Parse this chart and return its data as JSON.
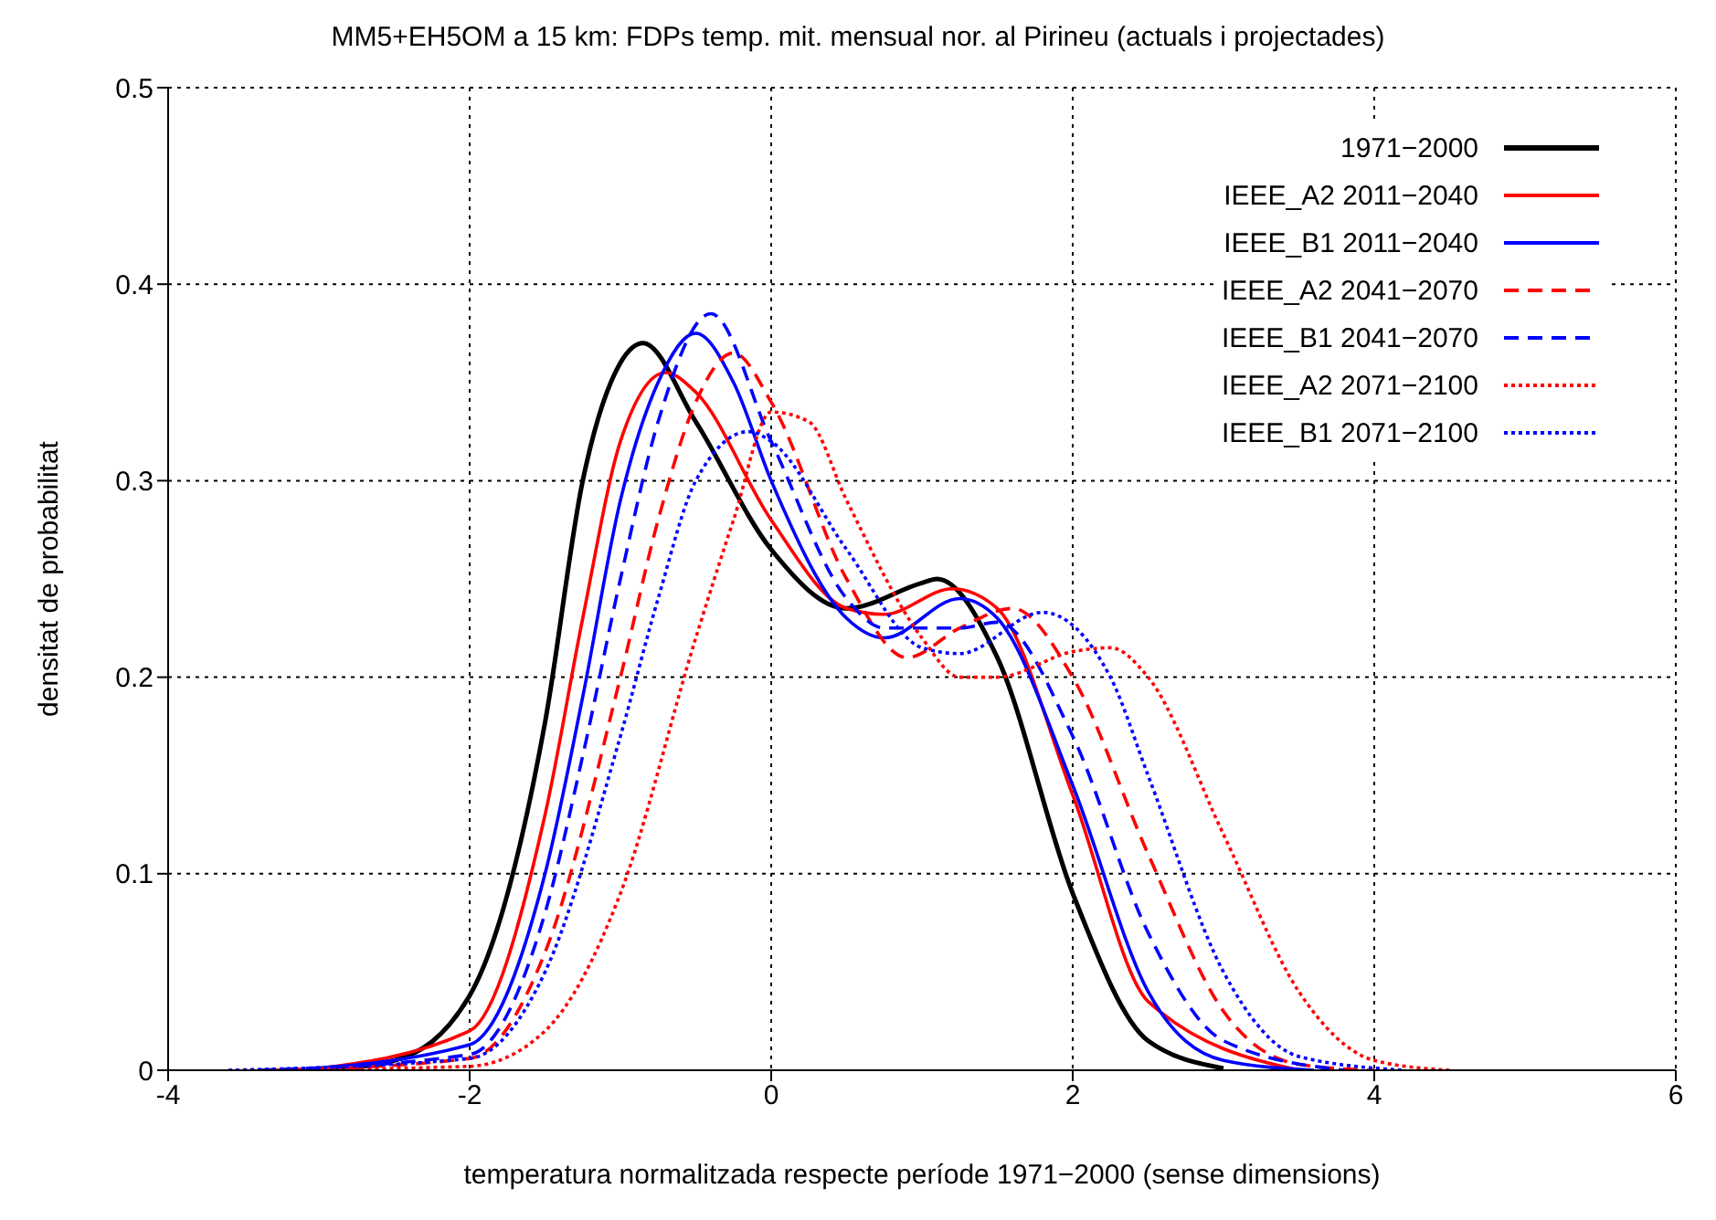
{
  "chart_data": {
    "type": "line",
    "title": "MM5+EH5OM a 15 km: FDPs temp. mit. mensual nor. al Pirineu (actuals i projectades)",
    "xlabel": "temperatura normalitzada respecte període 1971−2000 (sense dimensions)",
    "ylabel": "densitat de probabilitat",
    "xlim": [
      -4,
      6
    ],
    "xticks": [
      -4,
      -2,
      0,
      2,
      4,
      6
    ],
    "ylim": [
      0,
      0.5
    ],
    "yticks": [
      0,
      0.1,
      0.2,
      0.3,
      0.4,
      0.5
    ],
    "grid": true,
    "legend": "top right",
    "marker": "none",
    "series": [
      {
        "name": "1971−2000",
        "color": "#000000",
        "line_style": "solid",
        "x": [
          -3,
          -2.5,
          -2,
          -1.5,
          -1.25,
          -1,
          -0.85,
          -0.5,
          0,
          0.5,
          1,
          1.1,
          1.5,
          2,
          2.5,
          3
        ],
        "values": [
          0,
          0.005,
          0.038,
          0.177,
          0.3,
          0.36,
          0.37,
          0.33,
          0.265,
          0.235,
          0.248,
          0.25,
          0.21,
          0.09,
          0.015,
          0.001
        ]
      },
      {
        "name": "IEEE_A2 2011−2040",
        "color": "#ff0000",
        "line_style": "solid",
        "x": [
          -3.1,
          -2,
          -1.5,
          -1.25,
          -1,
          -0.7,
          -0.5,
          0,
          0.5,
          0.75,
          1.2,
          1.5,
          2,
          2.5,
          3.5
        ],
        "values": [
          0,
          0.02,
          0.13,
          0.23,
          0.32,
          0.355,
          0.345,
          0.28,
          0.235,
          0.232,
          0.245,
          0.235,
          0.14,
          0.035,
          0
        ]
      },
      {
        "name": "IEEE_B1 2011−2040",
        "color": "#0000ff",
        "line_style": "solid",
        "x": [
          -3.2,
          -2,
          -1.5,
          -1.25,
          -1,
          -0.75,
          -0.5,
          -0.25,
          0,
          0.5,
          0.75,
          1.25,
          1.5,
          2,
          2.5,
          3,
          3.6
        ],
        "values": [
          0,
          0.013,
          0.1,
          0.19,
          0.29,
          0.35,
          0.375,
          0.35,
          0.3,
          0.23,
          0.22,
          0.24,
          0.23,
          0.145,
          0.04,
          0.005,
          0
        ]
      },
      {
        "name": "IEEE_A2 2041−2070",
        "color": "#ff0000",
        "line_style": "dashed",
        "x": [
          -3.3,
          -2,
          -1.5,
          -1,
          -0.75,
          -0.5,
          -0.25,
          0,
          0.5,
          0.9,
          1.25,
          1.6,
          2,
          2.5,
          3,
          3.5,
          4
        ],
        "values": [
          0,
          0.006,
          0.06,
          0.2,
          0.28,
          0.34,
          0.365,
          0.34,
          0.25,
          0.21,
          0.225,
          0.235,
          0.2,
          0.11,
          0.03,
          0.003,
          0
        ]
      },
      {
        "name": "IEEE_B1 2041−2070",
        "color": "#0000ff",
        "line_style": "dashed",
        "x": [
          -3.4,
          -2,
          -1.5,
          -1.25,
          -1,
          -0.75,
          -0.4,
          0,
          0.5,
          0.75,
          1.25,
          1.5,
          2,
          2.5,
          3,
          3.8
        ],
        "values": [
          0,
          0.008,
          0.08,
          0.16,
          0.25,
          0.33,
          0.385,
          0.32,
          0.24,
          0.225,
          0.225,
          0.228,
          0.17,
          0.07,
          0.015,
          0
        ]
      },
      {
        "name": "IEEE_A2 2071−2100",
        "color": "#ff0000",
        "line_style": "dotted",
        "x": [
          -3.5,
          -2,
          -1.5,
          -1,
          -0.5,
          -0.25,
          0,
          0.25,
          0.5,
          1,
          1.25,
          1.5,
          2,
          2.25,
          2.5,
          3,
          3.5,
          4,
          4.5
        ],
        "values": [
          0,
          0.002,
          0.02,
          0.09,
          0.22,
          0.28,
          0.335,
          0.33,
          0.29,
          0.22,
          0.2,
          0.2,
          0.213,
          0.215,
          0.2,
          0.12,
          0.04,
          0.005,
          0
        ]
      },
      {
        "name": "IEEE_B1 2071−2100",
        "color": "#0000ff",
        "line_style": "dotted",
        "x": [
          -3.6,
          -2,
          -1.5,
          -1,
          -0.75,
          -0.5,
          -0.15,
          0,
          0.5,
          1,
          1.25,
          1.8,
          2.25,
          2.5,
          3,
          3.5,
          4.2
        ],
        "values": [
          0,
          0.006,
          0.05,
          0.17,
          0.24,
          0.3,
          0.325,
          0.32,
          0.265,
          0.215,
          0.212,
          0.233,
          0.2,
          0.15,
          0.05,
          0.007,
          0
        ]
      }
    ]
  }
}
